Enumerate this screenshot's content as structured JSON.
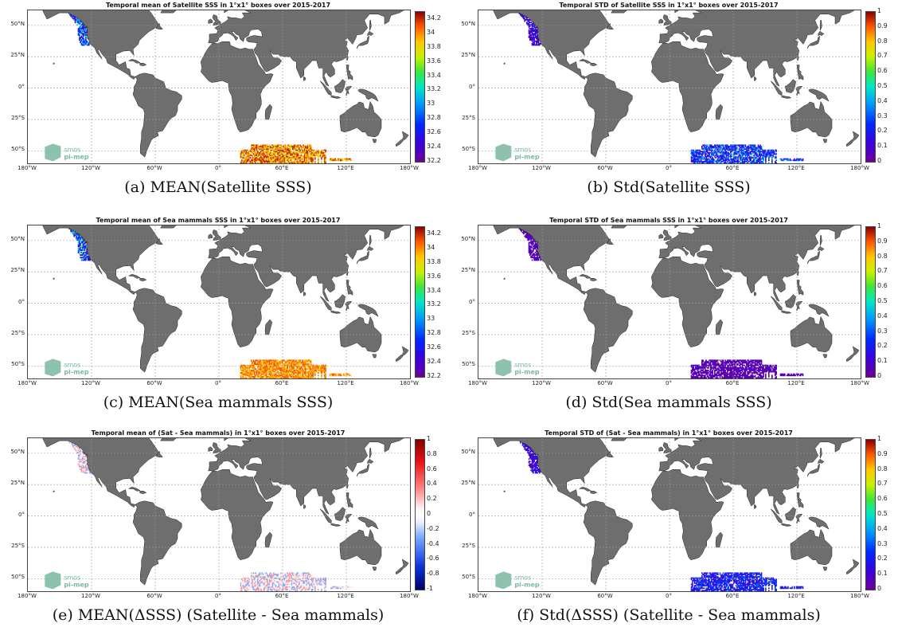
{
  "colors": {
    "land": "#6e6e6e",
    "grid": "#9a9a9a",
    "ocean": "#ffffff",
    "logo": "#79b99d"
  },
  "logo": {
    "line1": "smos",
    "line2": "pi-mep"
  },
  "lat_labels": [
    "50°N",
    "25°N",
    "0°",
    "25°S",
    "50°S"
  ],
  "lon_labels": [
    "180°W",
    "120°W",
    "60°W",
    "0°",
    "60°E",
    "120°E",
    "180°W"
  ],
  "panels": [
    {
      "title": "Temporal mean of Satellite SSS in 1°x1° boxes over 2015-2017",
      "caption": "(a) MEAN(Satellite SSS)",
      "colormap": "jet",
      "clim": [
        32.2,
        34.3
      ],
      "ticks": [
        "34.2",
        "34",
        "33.8",
        "33.6",
        "33.4",
        "33.2",
        "33",
        "32.8",
        "32.6",
        "32.4",
        "32.2"
      ],
      "regions": [
        {
          "name": "North Pacific coast",
          "values": [
            32.4,
            32.6,
            32.8,
            33.0,
            33.2
          ]
        },
        {
          "name": "Southern Indian Ocean",
          "values": [
            33.8,
            34.0,
            34.2
          ]
        }
      ]
    },
    {
      "title": "Temporal STD of Satellite SSS in 1°x1° boxes over 2015-2017",
      "caption": "(b) Std(Satellite SSS)",
      "colormap": "jet",
      "clim": [
        0,
        1
      ],
      "ticks": [
        "1",
        "0.9",
        "0.8",
        "0.7",
        "0.6",
        "0.5",
        "0.4",
        "0.3",
        "0.2",
        "0.1",
        "0"
      ],
      "regions": [
        {
          "name": "North Pacific coast",
          "values": [
            0.05,
            0.1,
            0.15,
            0.2
          ]
        },
        {
          "name": "Southern Indian Ocean",
          "values": [
            0.1,
            0.2,
            0.3,
            0.4
          ]
        }
      ]
    },
    {
      "title": "Temporal mean of Sea mammals SSS in 1°x1° boxes over 2015-2017",
      "caption": "(c) MEAN(Sea mammals SSS)",
      "colormap": "jet",
      "clim": [
        32.2,
        34.3
      ],
      "ticks": [
        "34.2",
        "34",
        "33.8",
        "33.6",
        "33.4",
        "33.2",
        "33",
        "32.8",
        "32.6",
        "32.4",
        "32.2"
      ],
      "regions": [
        {
          "name": "North Pacific coast",
          "values": [
            32.4,
            32.6,
            32.8,
            33.0,
            33.4
          ]
        },
        {
          "name": "Southern Indian Ocean",
          "values": [
            33.9,
            34.0,
            34.1
          ]
        }
      ]
    },
    {
      "title": "Temporal STD of Sea mammals SSS in 1°x1° boxes over 2015-2017",
      "caption": "(d) Std(Sea mammals SSS)",
      "colormap": "jet",
      "clim": [
        0,
        1
      ],
      "ticks": [
        "1",
        "0.9",
        "0.8",
        "0.7",
        "0.6",
        "0.5",
        "0.4",
        "0.3",
        "0.2",
        "0.1",
        "0"
      ],
      "regions": [
        {
          "name": "North Pacific coast",
          "values": [
            0.02,
            0.05,
            0.1
          ]
        },
        {
          "name": "Southern Indian Ocean",
          "values": [
            0.02,
            0.05,
            0.08
          ]
        }
      ]
    },
    {
      "title": "Temporal mean of (Sat - Sea mammals) in 1°x1° boxes over 2015-2017",
      "caption": "(e) MEAN(ΔSSS) (Satellite - Sea mammals)",
      "colormap": "bwr",
      "clim": [
        -1,
        1
      ],
      "ticks": [
        "1",
        "0.8",
        "0.6",
        "0.4",
        "0.2",
        "0",
        "-0.2",
        "-0.4",
        "-0.6",
        "-0.8",
        "-1"
      ],
      "regions": [
        {
          "name": "North Pacific coast",
          "values": [
            -0.3,
            -0.1,
            0.1,
            0.3
          ]
        },
        {
          "name": "Southern Indian Ocean",
          "values": [
            -0.3,
            -0.1,
            0.1,
            0.3
          ]
        }
      ]
    },
    {
      "title": "Temporal STD of (Sat - Sea mammals) in 1°x1° boxes over 2015-2017",
      "caption": "(f) Std(ΔSSS) (Satellite - Sea mammals)",
      "colormap": "jet",
      "clim": [
        0,
        1
      ],
      "ticks": [
        "1",
        "0.9",
        "0.8",
        "0.7",
        "0.6",
        "0.5",
        "0.4",
        "0.3",
        "0.2",
        "0.1",
        "0"
      ],
      "regions": [
        {
          "name": "North Pacific coast",
          "values": [
            0.05,
            0.1,
            0.15,
            0.2
          ]
        },
        {
          "name": "Southern Indian Ocean",
          "values": [
            0.1,
            0.2,
            0.3
          ]
        }
      ]
    }
  ],
  "chart_data": [
    {
      "type": "heatmap",
      "title": "Temporal mean of Satellite SSS in 1°x1° boxes over 2015-2017",
      "xlim": [
        -180,
        180
      ],
      "ylim": [
        -60,
        62
      ],
      "clim": [
        32.2,
        34.3
      ],
      "colorbar_ticks": [
        34.2,
        34,
        33.8,
        33.6,
        33.4,
        33.2,
        33,
        32.8,
        32.6,
        32.4,
        32.2
      ],
      "grid": true
    },
    {
      "type": "heatmap",
      "title": "Temporal STD of Satellite SSS in 1°x1° boxes over 2015-2017",
      "xlim": [
        -180,
        180
      ],
      "ylim": [
        -60,
        62
      ],
      "clim": [
        0,
        1
      ],
      "colorbar_ticks": [
        1,
        0.9,
        0.8,
        0.7,
        0.6,
        0.5,
        0.4,
        0.3,
        0.2,
        0.1,
        0
      ],
      "grid": true
    },
    {
      "type": "heatmap",
      "title": "Temporal mean of Sea mammals SSS in 1°x1° boxes over 2015-2017",
      "xlim": [
        -180,
        180
      ],
      "ylim": [
        -60,
        62
      ],
      "clim": [
        32.2,
        34.3
      ],
      "colorbar_ticks": [
        34.2,
        34,
        33.8,
        33.6,
        33.4,
        33.2,
        33,
        32.8,
        32.6,
        32.4,
        32.2
      ],
      "grid": true
    },
    {
      "type": "heatmap",
      "title": "Temporal STD of Sea mammals SSS in 1°x1° boxes over 2015-2017",
      "xlim": [
        -180,
        180
      ],
      "ylim": [
        -60,
        62
      ],
      "clim": [
        0,
        1
      ],
      "colorbar_ticks": [
        1,
        0.9,
        0.8,
        0.7,
        0.6,
        0.5,
        0.4,
        0.3,
        0.2,
        0.1,
        0
      ],
      "grid": true
    },
    {
      "type": "heatmap",
      "title": "Temporal mean of (Sat - Sea mammals) in 1°x1° boxes over 2015-2017",
      "xlim": [
        -180,
        180
      ],
      "ylim": [
        -60,
        62
      ],
      "clim": [
        -1,
        1
      ],
      "colorbar_ticks": [
        1,
        0.8,
        0.6,
        0.4,
        0.2,
        0,
        -0.2,
        -0.4,
        -0.6,
        -0.8,
        -1
      ],
      "grid": true
    },
    {
      "type": "heatmap",
      "title": "Temporal STD of (Sat - Sea mammals) in 1°x1° boxes over 2015-2017",
      "xlim": [
        -180,
        180
      ],
      "ylim": [
        -60,
        62
      ],
      "clim": [
        0,
        1
      ],
      "colorbar_ticks": [
        1,
        0.9,
        0.8,
        0.7,
        0.6,
        0.5,
        0.4,
        0.3,
        0.2,
        0.1,
        0
      ],
      "grid": true
    }
  ]
}
